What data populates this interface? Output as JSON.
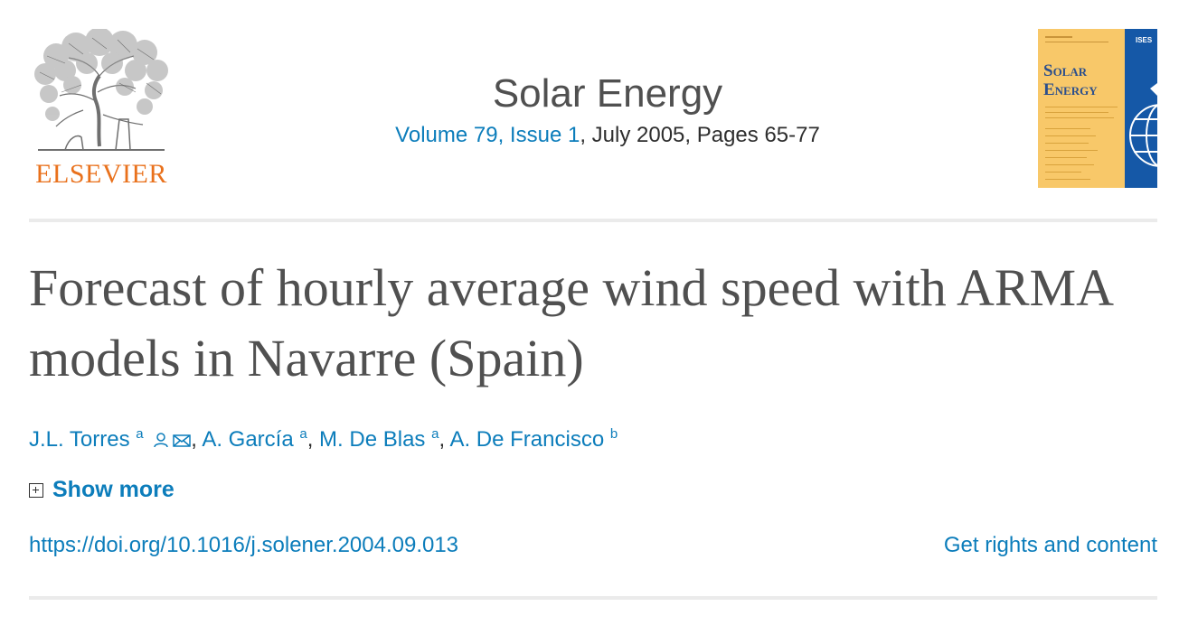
{
  "header": {
    "publisher_name": "ELSEVIER",
    "journal_title": "Solar Energy",
    "volume_issue": "Volume 79, Issue 1",
    "issue_rest": ", July 2005, Pages 65-77",
    "cover": {
      "title": "Solar Energy",
      "badge": "ISES"
    }
  },
  "article": {
    "title": "Forecast of hourly average wind speed with ARMA models in Navarre (Spain)",
    "authors": [
      {
        "name": "J.L. Torres",
        "aff": "a"
      },
      {
        "name": "A. García",
        "aff": "a"
      },
      {
        "name": "M. De Blas",
        "aff": "a"
      },
      {
        "name": "A. De Francisco",
        "aff": "b"
      }
    ],
    "show_more": "Show more",
    "doi": "https://doi.org/10.1016/j.solener.2004.09.013",
    "rights": "Get rights and content"
  },
  "icons": {
    "author_profile": "person-icon",
    "author_email": "envelope-icon",
    "show_more": "plus-box-icon"
  },
  "colors": {
    "link": "#0c7dbb",
    "publisher_orange": "#e9711c",
    "title_gray": "#505050",
    "cover_yellow": "#f8c869",
    "cover_blue": "#1558a7"
  }
}
